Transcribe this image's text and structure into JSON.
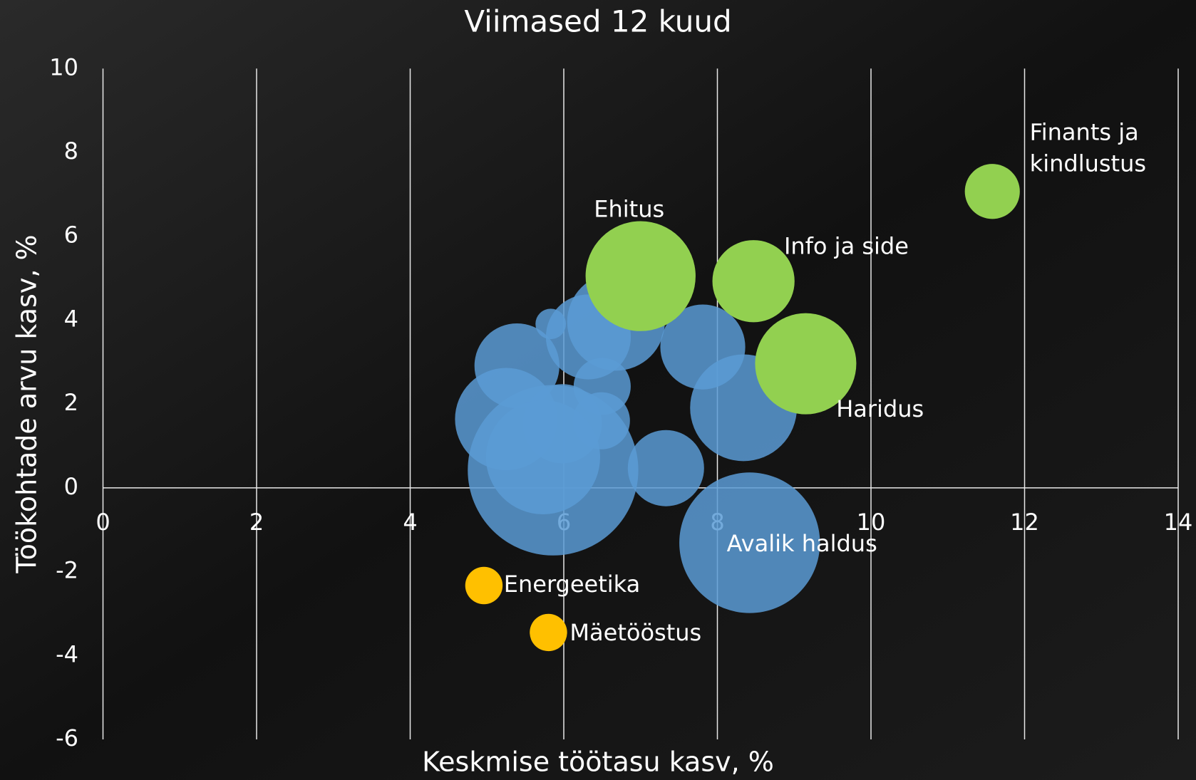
{
  "chart_data": {
    "type": "bubble",
    "title": "Viimased 12 kuud",
    "x_label": "Keskmise töötasu kasv, %",
    "y_label": "Töökohtade arvu kasv, %",
    "xlim": [
      0,
      14
    ],
    "xticks": [
      0,
      2,
      4,
      6,
      8,
      10,
      12,
      14
    ],
    "ylim": [
      -6,
      10
    ],
    "yticks": [
      -6,
      -4,
      -2,
      0,
      2,
      4,
      6,
      8,
      10
    ],
    "grid": true,
    "series": [
      {
        "color": "#5b9bd5",
        "x": [
          5.86,
          5.25,
          5.39,
          6.68,
          6.32,
          5.83,
          7.81,
          8.34,
          7.33,
          6.5,
          6.49,
          5.98,
          5.73,
          8.42
        ],
        "values": [
          0.42,
          1.64,
          2.91,
          3.96,
          3.6,
          3.91,
          3.36,
          1.91,
          0.47,
          2.42,
          1.6,
          1.53,
          0.73,
          -1.31
        ],
        "sizes": [
          125,
          45,
          31,
          41,
          31,
          4,
          31,
          49,
          25,
          14,
          14,
          27,
          56,
          85
        ],
        "labels": [
          null,
          null,
          null,
          null,
          null,
          null,
          null,
          null,
          null,
          null,
          null,
          null,
          null,
          "Avalik haldus"
        ]
      },
      {
        "color": "#92d050",
        "x": [
          11.58,
          7.0,
          8.47,
          9.15
        ],
        "values": [
          7.07,
          5.05,
          4.93,
          2.96
        ],
        "sizes": [
          13,
          52,
          29,
          44
        ],
        "labels": [
          "Finants ja\nkindlustus",
          "Ehitus",
          "Info ja side",
          "Haridus"
        ]
      },
      {
        "color": "#ffc000",
        "x": [
          4.96,
          5.8
        ],
        "values": [
          -2.33,
          -3.45
        ],
        "sizes": [
          6,
          6
        ],
        "labels": [
          "Energeetika",
          "Mäetööstus"
        ]
      }
    ]
  }
}
